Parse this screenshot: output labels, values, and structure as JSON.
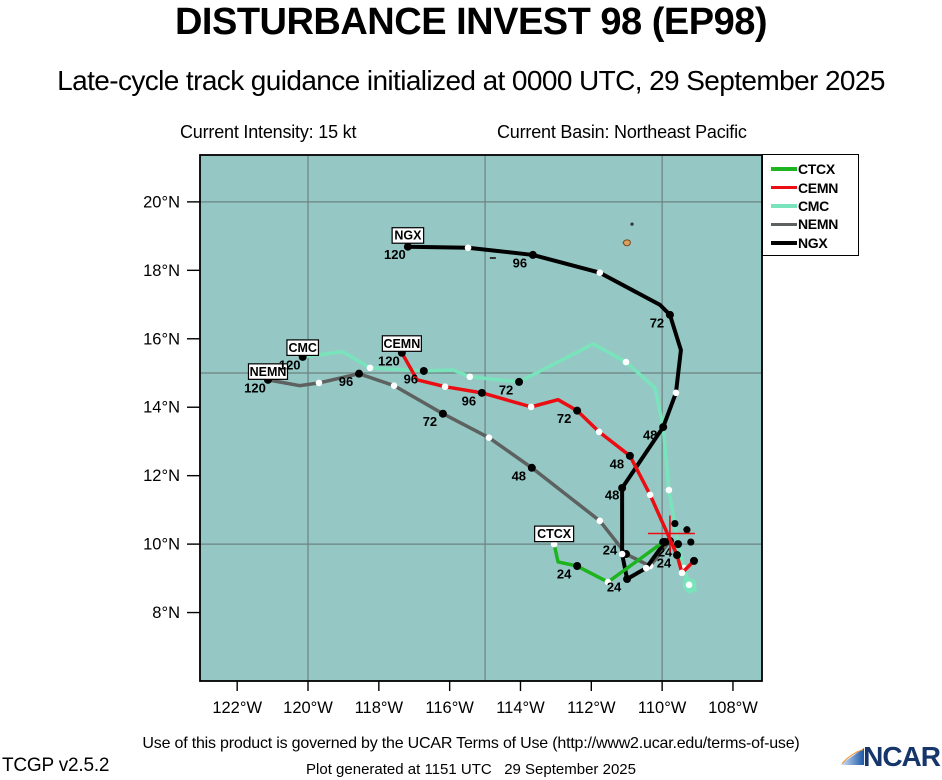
{
  "header": {
    "title": "DISTURBANCE INVEST 98 (EP98)",
    "subtitle": "Late-cycle track guidance initialized at 0000 UTC, 29 September 2025",
    "intensity": "Current Intensity: 15 kt",
    "basin": "Current Basin: Northeast Pacific"
  },
  "footer": {
    "terms": "Use of this product is governed by the UCAR Terms of Use (http://www2.ucar.edu/terms-of-use)",
    "version": "TCGP v2.5.2",
    "generated": "Plot generated at 1151 UTC   29 September 2025",
    "logo_text": "NCAR"
  },
  "legend": {
    "entries": [
      {
        "label": "CTCX",
        "color": "#1db420"
      },
      {
        "label": "CEMN",
        "color": "#ea0e13"
      },
      {
        "label": "CMC",
        "color": "#79e4bc"
      },
      {
        "label": "NEMN",
        "color": "#5d6260"
      },
      {
        "label": "NGX",
        "color": "#000000"
      }
    ]
  },
  "map": {
    "bg_color": "#95c8c5",
    "grid_color": "#6d8280",
    "cross_color": "#ea0e13",
    "analysis_cross": {
      "lat": 10.31,
      "lon_w": 109.78
    },
    "islands": [
      {
        "type": "blob",
        "lat": 18.8,
        "lon_w": 110.99,
        "fill": "#d9a05f",
        "stroke": "#7a4418"
      },
      {
        "type": "dot",
        "lat": 19.35,
        "lon_w": 110.85,
        "fill": "#333333"
      },
      {
        "type": "dash",
        "lat": 18.36,
        "lon_w": 114.78,
        "fill": "#333333"
      }
    ],
    "extra_dots": [
      {
        "lat": 10.6,
        "lon_w": 109.64
      },
      {
        "lat": 10.42,
        "lon_w": 109.3
      },
      {
        "lat": 10.06,
        "lon_w": 109.19
      }
    ],
    "end_patch": {
      "lat": 8.81,
      "lon_w": 109.24,
      "series": "CMC"
    }
  },
  "chart_data": {
    "type": "line",
    "title": "DISTURBANCE INVEST 98 (EP98)",
    "subtitle": "Late-cycle track guidance initialized at 0000 UTC, 29 September 2025",
    "legend_position": "top-right",
    "grid": true,
    "axes": {
      "lon_left_w": 123.05,
      "lon_right_w": 107.18,
      "lat_top": 21.37,
      "lat_bottom": 6.0,
      "grid_lons_w": [
        120,
        115,
        110
      ],
      "grid_lats": [
        20,
        15,
        10
      ],
      "x_ticks": [
        {
          "lon_w": 122,
          "label": "122°W"
        },
        {
          "lon_w": 120,
          "label": "120°W"
        },
        {
          "lon_w": 118,
          "label": "118°W"
        },
        {
          "lon_w": 116,
          "label": "116°W"
        },
        {
          "lon_w": 114,
          "label": "114°W"
        },
        {
          "lon_w": 112,
          "label": "112°W"
        },
        {
          "lon_w": 110,
          "label": "110°W"
        },
        {
          "lon_w": 108,
          "label": "108°W"
        }
      ],
      "y_ticks": [
        {
          "lat": 20,
          "label": "20°N"
        },
        {
          "lat": 18,
          "label": "18°N"
        },
        {
          "lat": 16,
          "label": "16°N"
        },
        {
          "lat": 14,
          "label": "14°N"
        },
        {
          "lat": 12,
          "label": "12°N"
        },
        {
          "lat": 10,
          "label": "10°N"
        },
        {
          "lat": 8,
          "label": "8°N"
        }
      ]
    },
    "series": [
      {
        "name": "CMC",
        "color": "#79e4bc",
        "width": 3.5,
        "name_box_dy": -9,
        "points": [
          {
            "h": 0,
            "lat": 8.81,
            "lon_w": 109.24,
            "m": "w"
          },
          {
            "h": 12,
            "lat": 9.3,
            "lon_w": 109.38,
            "m": "w"
          },
          {
            "h": 24,
            "lat": 10.0,
            "lon_w": 109.55,
            "m": "b",
            "lab": "24"
          },
          {
            "h": 36,
            "lat": 11.58,
            "lon_w": 109.81,
            "m": "w"
          },
          {
            "h": 48,
            "lat": 13.42,
            "lon_w": 109.97,
            "m": "b",
            "lab": "48"
          },
          {
            "lat": 14.56,
            "lon_w": 110.2
          },
          {
            "h": 60,
            "lat": 15.32,
            "lon_w": 111.02,
            "m": "w"
          },
          {
            "lat": 15.85,
            "lon_w": 111.95
          },
          {
            "h": 72,
            "lat": 14.74,
            "lon_w": 114.04,
            "m": "b",
            "lab": "72"
          },
          {
            "h": 84,
            "lat": 14.89,
            "lon_w": 115.43,
            "m": "w"
          },
          {
            "lat": 15.09,
            "lon_w": 115.91
          },
          {
            "h": 96,
            "lat": 15.06,
            "lon_w": 116.73,
            "m": "b",
            "lab": "96"
          },
          {
            "h": 108,
            "lat": 15.15,
            "lon_w": 118.25,
            "m": "w"
          },
          {
            "lat": 15.62,
            "lon_w": 119.02
          },
          {
            "h": 120,
            "lat": 15.47,
            "lon_w": 120.15,
            "m": "b",
            "lab": "120",
            "name_box": true
          }
        ]
      },
      {
        "name": "NEMN",
        "color": "#5d6260",
        "width": 3.5,
        "name_box_dy": -8,
        "points": [
          {
            "h": 0,
            "lat": 10.09,
            "lon_w": 109.78,
            "m": "b"
          },
          {
            "h": 12,
            "lat": 9.36,
            "lon_w": 110.34,
            "m": "w"
          },
          {
            "h": 24,
            "lat": 9.71,
            "lon_w": 111.02,
            "m": "b",
            "lab": "24",
            "lab_dx": -16,
            "lab_dy": -4
          },
          {
            "h": 36,
            "lat": 10.68,
            "lon_w": 111.76,
            "m": "w"
          },
          {
            "h": 48,
            "lat": 12.23,
            "lon_w": 113.68,
            "m": "b",
            "lab": "48"
          },
          {
            "h": 60,
            "lat": 13.11,
            "lon_w": 114.89,
            "m": "w"
          },
          {
            "h": 72,
            "lat": 13.81,
            "lon_w": 116.19,
            "m": "b",
            "lab": "72"
          },
          {
            "h": 84,
            "lat": 14.63,
            "lon_w": 117.57,
            "m": "w"
          },
          {
            "h": 96,
            "lat": 14.98,
            "lon_w": 118.56,
            "m": "b",
            "lab": "96"
          },
          {
            "h": 108,
            "lat": 14.71,
            "lon_w": 119.69,
            "m": "w"
          },
          {
            "lat": 14.63,
            "lon_w": 120.23
          },
          {
            "h": 120,
            "lat": 14.8,
            "lon_w": 121.13,
            "m": "b",
            "lab": "120",
            "name_box": true
          }
        ]
      },
      {
        "name": "NGX",
        "color": "#000000",
        "width": 4,
        "name_box_dy": -11,
        "points": [
          {
            "h": 0,
            "lat": 10.06,
            "lon_w": 109.92,
            "m": "b"
          },
          {
            "h": 12,
            "lat": 9.3,
            "lon_w": 110.45,
            "m": "w"
          },
          {
            "h": 24,
            "lat": 8.98,
            "lon_w": 110.99,
            "m": "b",
            "lab": "24"
          },
          {
            "h": 36,
            "lat": 9.71,
            "lon_w": 111.13,
            "m": "w"
          },
          {
            "h": 48,
            "lat": 11.64,
            "lon_w": 111.13,
            "m": "b",
            "lab": "48",
            "lab_dx": -10,
            "lab_dy": 7
          },
          {
            "lat": 13.42,
            "lon_w": 109.97
          },
          {
            "h": 60,
            "lat": 14.42,
            "lon_w": 109.61,
            "m": "w"
          },
          {
            "lat": 15.67,
            "lon_w": 109.47
          },
          {
            "h": 72,
            "lat": 16.7,
            "lon_w": 109.78,
            "m": "b",
            "lab": "72"
          },
          {
            "lat": 16.99,
            "lon_w": 110.06
          },
          {
            "h": 84,
            "lat": 17.93,
            "lon_w": 111.76,
            "m": "w"
          },
          {
            "h": 96,
            "lat": 18.45,
            "lon_w": 113.65,
            "m": "b",
            "lab": "96"
          },
          {
            "h": 108,
            "lat": 18.66,
            "lon_w": 115.48,
            "m": "w"
          },
          {
            "h": 120,
            "lat": 18.69,
            "lon_w": 117.18,
            "m": "b",
            "lab": "120",
            "name_box": true
          }
        ]
      },
      {
        "name": "CEMN",
        "color": "#ea0e13",
        "width": 3.5,
        "name_box_dy": -9,
        "points": [
          {
            "h": 0,
            "lat": 9.51,
            "lon_w": 109.1,
            "m": "b"
          },
          {
            "h": 12,
            "lat": 9.16,
            "lon_w": 109.44,
            "m": "w"
          },
          {
            "h": 24,
            "lat": 9.68,
            "lon_w": 109.58,
            "m": "b",
            "lab": "24"
          },
          {
            "h": 36,
            "lat": 11.44,
            "lon_w": 110.34,
            "m": "w"
          },
          {
            "h": 48,
            "lat": 12.58,
            "lon_w": 110.91,
            "m": "b",
            "lab": "48"
          },
          {
            "h": 60,
            "lat": 13.28,
            "lon_w": 111.78,
            "m": "w"
          },
          {
            "h": 72,
            "lat": 13.9,
            "lon_w": 112.4,
            "m": "b",
            "lab": "72"
          },
          {
            "lat": 14.22,
            "lon_w": 112.94
          },
          {
            "h": 84,
            "lat": 14.01,
            "lon_w": 113.7,
            "m": "w"
          },
          {
            "h": 96,
            "lat": 14.42,
            "lon_w": 115.09,
            "m": "b",
            "lab": "96"
          },
          {
            "h": 108,
            "lat": 14.6,
            "lon_w": 116.13,
            "m": "w"
          },
          {
            "lat": 14.8,
            "lon_w": 116.92
          },
          {
            "h": 120,
            "lat": 15.59,
            "lon_w": 117.35,
            "m": "b",
            "lab": "120",
            "name_box": true
          }
        ]
      },
      {
        "name": "CTCX",
        "color": "#1db420",
        "width": 3.5,
        "name_box_dy": -10,
        "points": [
          {
            "h": 0,
            "lat": 10.06,
            "lon_w": 109.97,
            "m": "b"
          },
          {
            "h": 12,
            "lat": 8.89,
            "lon_w": 111.53,
            "m": "w"
          },
          {
            "h": 24,
            "lat": 9.36,
            "lon_w": 112.4,
            "m": "b",
            "lab": "24"
          },
          {
            "lat": 9.48,
            "lon_w": 112.94
          },
          {
            "h": 36,
            "lat": 10.0,
            "lon_w": 113.05,
            "m": "w",
            "name_box": true
          }
        ]
      }
    ]
  }
}
